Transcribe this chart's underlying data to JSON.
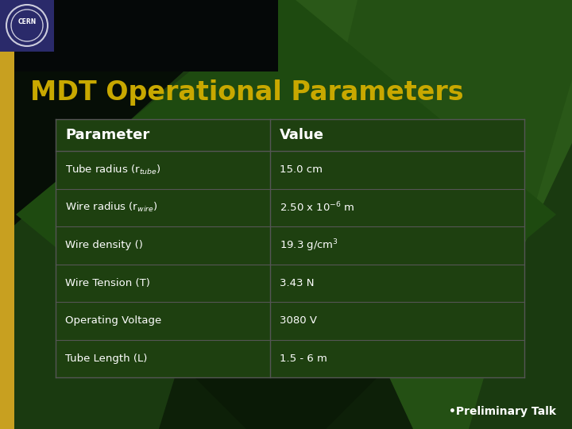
{
  "title": "MDT Operational Parameters",
  "title_color": "#C8A800",
  "bg_color": "#1a3a10",
  "left_bar_color": "#C8A020",
  "table_header": [
    "Parameter",
    "Value"
  ],
  "table_rows": [
    [
      "Tube radius (r$_{tube}$)",
      "15.0 cm"
    ],
    [
      "Wire radius (r$_{wire}$)",
      "2.50 x 10$^{-6}$ m"
    ],
    [
      "Wire density ()",
      "19.3 g/cm$^{3}$"
    ],
    [
      "Wire Tension (T)",
      "3.43 N"
    ],
    [
      "Operating Voltage",
      "3080 V"
    ],
    [
      "Tube Length (L)",
      "1.5 - 6 m"
    ]
  ],
  "table_text_color": "#ffffff",
  "table_header_color": "#ffffff",
  "table_border_color": "#555555",
  "footer_text": "•Preliminary Talk",
  "footer_color": "#ffffff",
  "cern_bg": "#2a2a6a",
  "diamond1_color": "#2a5818",
  "diamond2_color": "#1a3a0a",
  "diamond3_color": "#0d200a",
  "top_dark_color": "#050d05"
}
